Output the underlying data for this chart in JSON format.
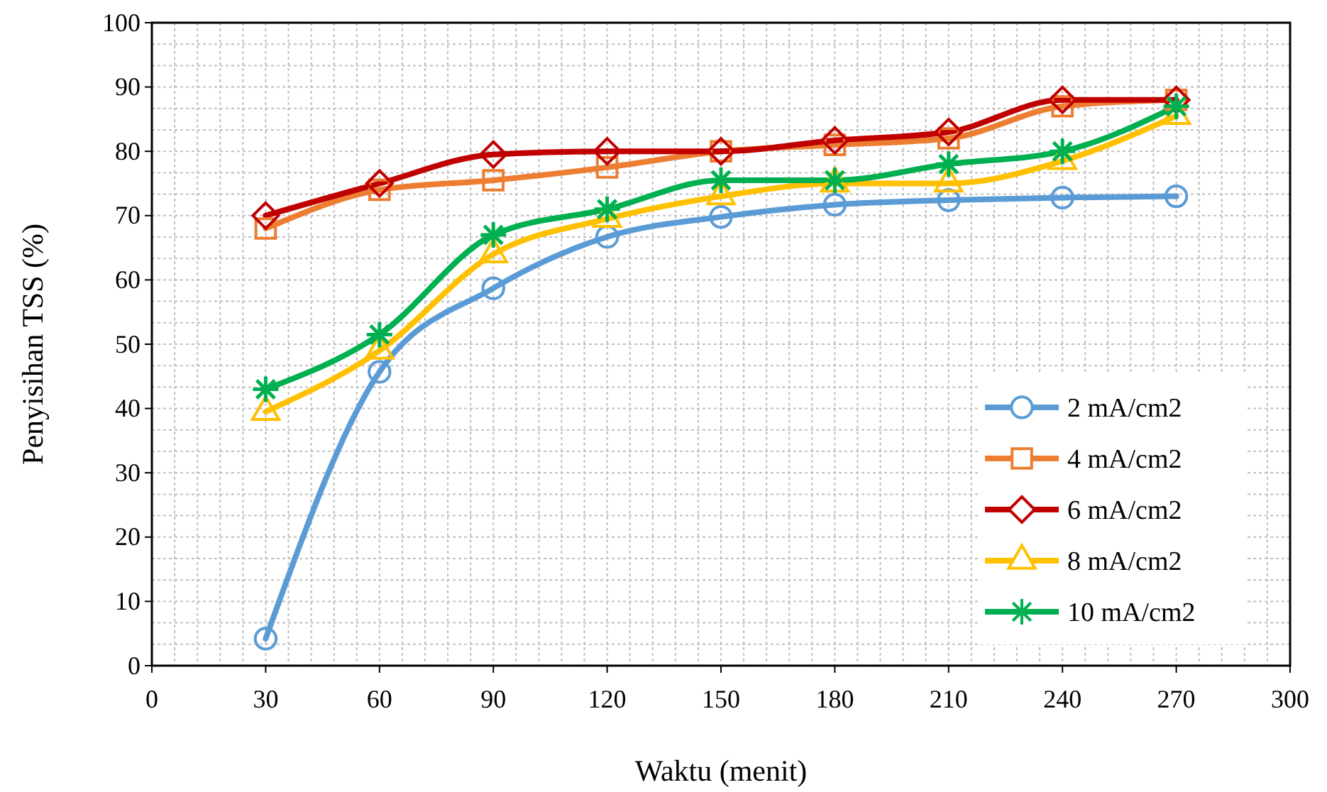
{
  "chart_data": {
    "type": "line",
    "xlabel": "Waktu (menit)",
    "ylabel": "Penyisihan TSS (%)",
    "x": [
      30,
      60,
      90,
      120,
      150,
      180,
      210,
      240,
      270
    ],
    "xlim": [
      0,
      300
    ],
    "xticks": [
      0,
      30,
      60,
      90,
      120,
      150,
      180,
      210,
      240,
      270,
      300
    ],
    "ylim": [
      0,
      100
    ],
    "yticks": [
      0,
      10,
      20,
      30,
      40,
      50,
      60,
      70,
      80,
      90,
      100
    ],
    "grid": true,
    "legend": "bottom right",
    "line_style": "solid",
    "series": [
      {
        "name": "2 mA/cm2",
        "color": "#5b9bd5",
        "marker": "circle",
        "values": [
          4.2,
          45.7,
          58.7,
          66.7,
          69.8,
          71.7,
          72.4,
          72.8,
          73
        ]
      },
      {
        "name": "4 mA/cm2",
        "color": "#ed7d31",
        "marker": "square",
        "values": [
          68,
          74,
          75.5,
          77.5,
          80,
          81,
          82,
          87,
          88
        ]
      },
      {
        "name": "6 mA/cm2",
        "color": "#c00000",
        "marker": "diamond",
        "values": [
          70,
          75,
          79.5,
          80,
          80,
          81.7,
          83,
          88,
          88
        ]
      },
      {
        "name": "8 mA/cm2",
        "color": "#ffc000",
        "marker": "triangle",
        "values": [
          39.5,
          49,
          64,
          69.5,
          73,
          75,
          75,
          78.5,
          85.5
        ]
      },
      {
        "name": "10 mA/cm2",
        "color": "#00b050",
        "marker": "cross",
        "values": [
          43,
          51.5,
          67,
          71,
          75.5,
          75.5,
          78,
          80,
          87
        ]
      }
    ]
  }
}
